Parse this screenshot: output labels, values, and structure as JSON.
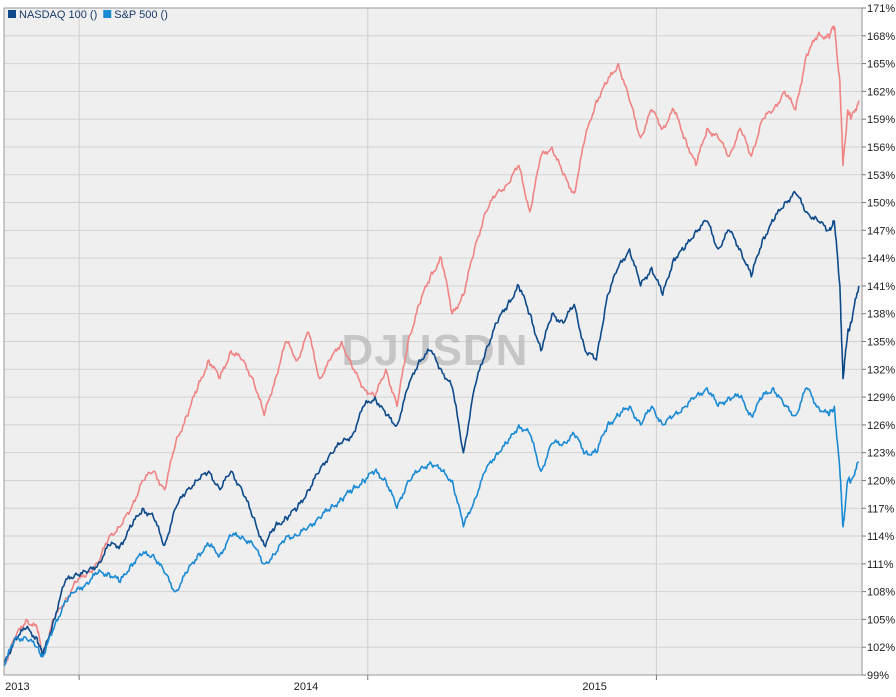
{
  "chart_data": {
    "type": "line",
    "watermark": "DJUSDN",
    "ylim": [
      99,
      171
    ],
    "yticks": [
      99,
      102,
      105,
      108,
      111,
      114,
      117,
      120,
      123,
      126,
      129,
      132,
      135,
      138,
      141,
      144,
      147,
      150,
      153,
      156,
      159,
      162,
      165,
      168,
      171
    ],
    "ytick_labels": [
      "99%",
      "102%",
      "105%",
      "108%",
      "111%",
      "114%",
      "117%",
      "120%",
      "123%",
      "126%",
      "129%",
      "132%",
      "135%",
      "138%",
      "141%",
      "144%",
      "147%",
      "150%",
      "153%",
      "156%",
      "159%",
      "162%",
      "165%",
      "168%",
      "171%"
    ],
    "xlim": [
      "2012-09-28",
      "2015-09-18"
    ],
    "xticks": [
      {
        "date": "2013-01-01",
        "label": "2013"
      },
      {
        "date": "2014-01-01",
        "label": "2014"
      },
      {
        "date": "2015-01-01",
        "label": "2015"
      }
    ],
    "legend_position": "top-left",
    "grid": true,
    "series": [
      {
        "name": "",
        "color": "#f08484",
        "points": [
          [
            "2012-09-28",
            100
          ],
          [
            "2012-10-12",
            103
          ],
          [
            "2012-10-26",
            105
          ],
          [
            "2012-11-09",
            104
          ],
          [
            "2012-11-16",
            101
          ],
          [
            "2012-11-30",
            105
          ],
          [
            "2012-12-14",
            107
          ],
          [
            "2012-12-28",
            109
          ],
          [
            "2013-01-11",
            110
          ],
          [
            "2013-01-25",
            111
          ],
          [
            "2013-02-08",
            114
          ],
          [
            "2013-02-22",
            115
          ],
          [
            "2013-03-08",
            117
          ],
          [
            "2013-03-22",
            120
          ],
          [
            "2013-04-05",
            121
          ],
          [
            "2013-04-19",
            119
          ],
          [
            "2013-05-03",
            124
          ],
          [
            "2013-05-17",
            127
          ],
          [
            "2013-05-31",
            130
          ],
          [
            "2013-06-14",
            133
          ],
          [
            "2013-06-28",
            131
          ],
          [
            "2013-07-12",
            134
          ],
          [
            "2013-07-26",
            133
          ],
          [
            "2013-08-09",
            131
          ],
          [
            "2013-08-23",
            127
          ],
          [
            "2013-09-06",
            131
          ],
          [
            "2013-09-20",
            135
          ],
          [
            "2013-10-04",
            133
          ],
          [
            "2013-10-18",
            136
          ],
          [
            "2013-11-01",
            131
          ],
          [
            "2013-11-15",
            133
          ],
          [
            "2013-11-29",
            135
          ],
          [
            "2013-12-13",
            132
          ],
          [
            "2013-12-27",
            130
          ],
          [
            "2014-01-10",
            129
          ],
          [
            "2014-01-24",
            132
          ],
          [
            "2014-02-07",
            128
          ],
          [
            "2014-02-21",
            135
          ],
          [
            "2014-03-07",
            139
          ],
          [
            "2014-03-21",
            142
          ],
          [
            "2014-04-04",
            144
          ],
          [
            "2014-04-18",
            138
          ],
          [
            "2014-05-02",
            140
          ],
          [
            "2014-05-16",
            145
          ],
          [
            "2014-05-30",
            149
          ],
          [
            "2014-06-13",
            151
          ],
          [
            "2014-06-27",
            152
          ],
          [
            "2014-07-11",
            154
          ],
          [
            "2014-07-25",
            149
          ],
          [
            "2014-08-08",
            155
          ],
          [
            "2014-08-22",
            156
          ],
          [
            "2014-09-05",
            153
          ],
          [
            "2014-09-19",
            151
          ],
          [
            "2014-10-03",
            157
          ],
          [
            "2014-10-17",
            161
          ],
          [
            "2014-10-31",
            163
          ],
          [
            "2014-11-14",
            165
          ],
          [
            "2014-11-28",
            161
          ],
          [
            "2014-12-12",
            157
          ],
          [
            "2014-12-26",
            160
          ],
          [
            "2015-01-09",
            158
          ],
          [
            "2015-01-23",
            160
          ],
          [
            "2015-02-06",
            157
          ],
          [
            "2015-02-20",
            154
          ],
          [
            "2015-03-06",
            158
          ],
          [
            "2015-03-20",
            157
          ],
          [
            "2015-04-03",
            155
          ],
          [
            "2015-04-17",
            158
          ],
          [
            "2015-05-01",
            155
          ],
          [
            "2015-05-15",
            159
          ],
          [
            "2015-05-29",
            160
          ],
          [
            "2015-06-12",
            162
          ],
          [
            "2015-06-26",
            160
          ],
          [
            "2015-07-10",
            166
          ],
          [
            "2015-07-24",
            168
          ],
          [
            "2015-08-07",
            168
          ],
          [
            "2015-08-14",
            169
          ],
          [
            "2015-08-21",
            163
          ],
          [
            "2015-08-25",
            154
          ],
          [
            "2015-08-31",
            160
          ],
          [
            "2015-09-04",
            159
          ],
          [
            "2015-09-14",
            161
          ]
        ]
      },
      {
        "name": "NASDAQ 100 ()",
        "color": "#0e4a8a",
        "points": [
          [
            "2012-09-28",
            100
          ],
          [
            "2012-10-12",
            103
          ],
          [
            "2012-10-26",
            104
          ],
          [
            "2012-11-09",
            103
          ],
          [
            "2012-11-16",
            101
          ],
          [
            "2012-11-30",
            105
          ],
          [
            "2012-12-14",
            109
          ],
          [
            "2012-12-28",
            110
          ],
          [
            "2013-01-11",
            110
          ],
          [
            "2013-01-25",
            111
          ],
          [
            "2013-02-08",
            113
          ],
          [
            "2013-02-22",
            113
          ],
          [
            "2013-03-08",
            115
          ],
          [
            "2013-03-22",
            117
          ],
          [
            "2013-04-05",
            116
          ],
          [
            "2013-04-19",
            113
          ],
          [
            "2013-05-03",
            117
          ],
          [
            "2013-05-17",
            119
          ],
          [
            "2013-05-31",
            120
          ],
          [
            "2013-06-14",
            121
          ],
          [
            "2013-06-28",
            119
          ],
          [
            "2013-07-12",
            121
          ],
          [
            "2013-07-26",
            119
          ],
          [
            "2013-08-09",
            116
          ],
          [
            "2013-08-23",
            113
          ],
          [
            "2013-09-06",
            115
          ],
          [
            "2013-09-20",
            116
          ],
          [
            "2013-10-04",
            117
          ],
          [
            "2013-10-18",
            119
          ],
          [
            "2013-11-01",
            121
          ],
          [
            "2013-11-15",
            123
          ],
          [
            "2013-11-29",
            124
          ],
          [
            "2013-12-13",
            125
          ],
          [
            "2013-12-27",
            128
          ],
          [
            "2014-01-10",
            129
          ],
          [
            "2014-01-24",
            127
          ],
          [
            "2014-02-07",
            126
          ],
          [
            "2014-02-21",
            130
          ],
          [
            "2014-03-07",
            133
          ],
          [
            "2014-03-21",
            134
          ],
          [
            "2014-04-04",
            132
          ],
          [
            "2014-04-18",
            130
          ],
          [
            "2014-05-02",
            123
          ],
          [
            "2014-05-16",
            130
          ],
          [
            "2014-05-30",
            134
          ],
          [
            "2014-06-13",
            137
          ],
          [
            "2014-06-27",
            139
          ],
          [
            "2014-07-11",
            141
          ],
          [
            "2014-07-25",
            138
          ],
          [
            "2014-08-08",
            134
          ],
          [
            "2014-08-22",
            138
          ],
          [
            "2014-09-05",
            137
          ],
          [
            "2014-09-19",
            139
          ],
          [
            "2014-10-03",
            134
          ],
          [
            "2014-10-17",
            133
          ],
          [
            "2014-10-31",
            140
          ],
          [
            "2014-11-14",
            143
          ],
          [
            "2014-11-28",
            145
          ],
          [
            "2014-12-12",
            141
          ],
          [
            "2014-12-26",
            143
          ],
          [
            "2015-01-09",
            140
          ],
          [
            "2015-01-23",
            144
          ],
          [
            "2015-02-06",
            145
          ],
          [
            "2015-02-20",
            147
          ],
          [
            "2015-03-06",
            148
          ],
          [
            "2015-03-20",
            145
          ],
          [
            "2015-04-03",
            147
          ],
          [
            "2015-04-17",
            145
          ],
          [
            "2015-05-01",
            142
          ],
          [
            "2015-05-15",
            146
          ],
          [
            "2015-05-29",
            148
          ],
          [
            "2015-06-12",
            150
          ],
          [
            "2015-06-26",
            151
          ],
          [
            "2015-07-10",
            149
          ],
          [
            "2015-07-24",
            148
          ],
          [
            "2015-08-07",
            147
          ],
          [
            "2015-08-14",
            148
          ],
          [
            "2015-08-21",
            141
          ],
          [
            "2015-08-25",
            131
          ],
          [
            "2015-08-31",
            136
          ],
          [
            "2015-09-04",
            137
          ],
          [
            "2015-09-14",
            141
          ]
        ]
      },
      {
        "name": "S&P 500 ()",
        "color": "#1a8ad4",
        "points": [
          [
            "2012-09-28",
            100
          ],
          [
            "2012-10-12",
            103
          ],
          [
            "2012-10-26",
            103
          ],
          [
            "2012-11-09",
            102
          ],
          [
            "2012-11-16",
            101
          ],
          [
            "2012-11-30",
            104
          ],
          [
            "2012-12-14",
            107
          ],
          [
            "2012-12-28",
            108
          ],
          [
            "2013-01-11",
            109
          ],
          [
            "2013-01-25",
            110
          ],
          [
            "2013-02-08",
            110
          ],
          [
            "2013-02-22",
            109
          ],
          [
            "2013-03-08",
            111
          ],
          [
            "2013-03-22",
            112
          ],
          [
            "2013-04-05",
            112
          ],
          [
            "2013-04-19",
            110
          ],
          [
            "2013-05-03",
            108
          ],
          [
            "2013-05-17",
            110
          ],
          [
            "2013-05-31",
            112
          ],
          [
            "2013-06-14",
            113
          ],
          [
            "2013-06-28",
            112
          ],
          [
            "2013-07-12",
            114
          ],
          [
            "2013-07-26",
            114
          ],
          [
            "2013-08-09",
            113
          ],
          [
            "2013-08-23",
            111
          ],
          [
            "2013-09-06",
            112
          ],
          [
            "2013-09-20",
            114
          ],
          [
            "2013-10-04",
            114
          ],
          [
            "2013-10-18",
            115
          ],
          [
            "2013-11-01",
            116
          ],
          [
            "2013-11-15",
            117
          ],
          [
            "2013-11-29",
            118
          ],
          [
            "2013-12-13",
            119
          ],
          [
            "2013-12-27",
            120
          ],
          [
            "2014-01-10",
            121
          ],
          [
            "2014-01-24",
            120
          ],
          [
            "2014-02-07",
            117
          ],
          [
            "2014-02-21",
            120
          ],
          [
            "2014-03-07",
            121
          ],
          [
            "2014-03-21",
            122
          ],
          [
            "2014-04-04",
            121
          ],
          [
            "2014-04-18",
            120
          ],
          [
            "2014-05-02",
            115
          ],
          [
            "2014-05-16",
            118
          ],
          [
            "2014-05-30",
            121
          ],
          [
            "2014-06-13",
            123
          ],
          [
            "2014-06-27",
            124
          ],
          [
            "2014-07-11",
            126
          ],
          [
            "2014-07-25",
            125
          ],
          [
            "2014-08-08",
            121
          ],
          [
            "2014-08-22",
            124
          ],
          [
            "2014-09-05",
            124
          ],
          [
            "2014-09-19",
            125
          ],
          [
            "2014-10-03",
            123
          ],
          [
            "2014-10-17",
            123
          ],
          [
            "2014-10-31",
            126
          ],
          [
            "2014-11-14",
            127
          ],
          [
            "2014-11-28",
            128
          ],
          [
            "2014-12-12",
            126
          ],
          [
            "2014-12-26",
            128
          ],
          [
            "2015-01-09",
            126
          ],
          [
            "2015-01-23",
            127
          ],
          [
            "2015-02-06",
            128
          ],
          [
            "2015-02-20",
            129
          ],
          [
            "2015-03-06",
            130
          ],
          [
            "2015-03-20",
            128
          ],
          [
            "2015-04-03",
            129
          ],
          [
            "2015-04-17",
            129
          ],
          [
            "2015-05-01",
            127
          ],
          [
            "2015-05-15",
            129
          ],
          [
            "2015-05-29",
            130
          ],
          [
            "2015-06-12",
            128
          ],
          [
            "2015-06-26",
            127
          ],
          [
            "2015-07-10",
            130
          ],
          [
            "2015-07-24",
            128
          ],
          [
            "2015-08-07",
            127
          ],
          [
            "2015-08-14",
            128
          ],
          [
            "2015-08-21",
            121
          ],
          [
            "2015-08-25",
            115
          ],
          [
            "2015-08-31",
            120
          ],
          [
            "2015-09-04",
            120
          ],
          [
            "2015-09-14",
            122
          ]
        ]
      }
    ]
  }
}
